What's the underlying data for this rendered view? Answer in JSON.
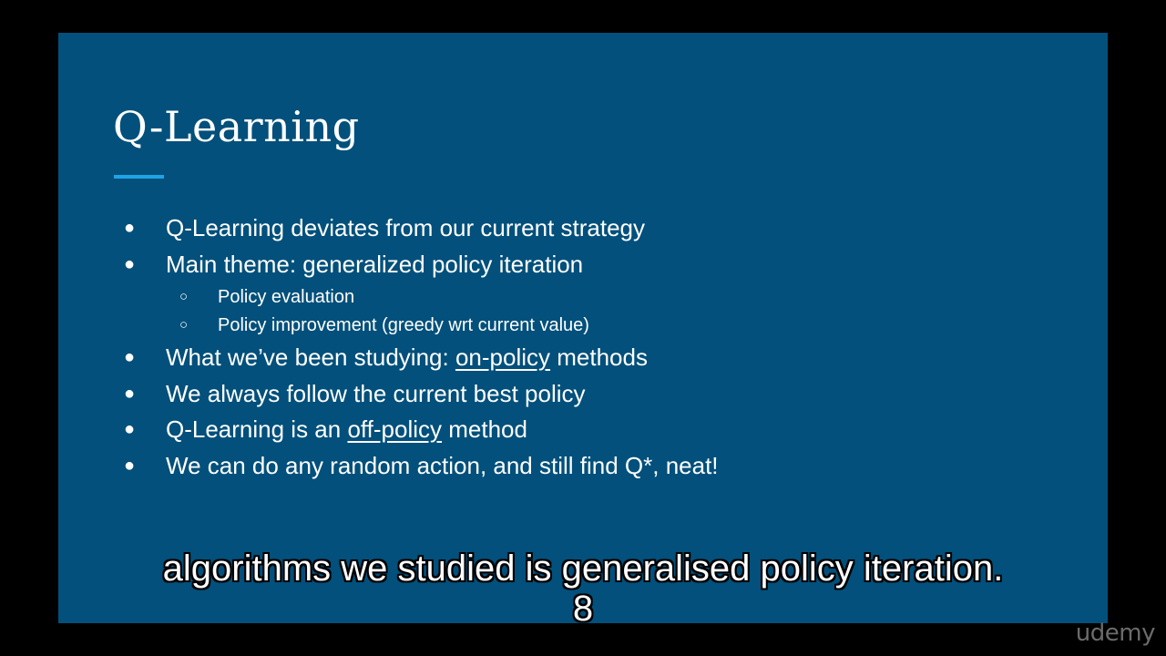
{
  "slide": {
    "title": "Q-Learning",
    "accent_color": "#1ea4e6",
    "background_color": "#02507b",
    "bullets": [
      {
        "marker": "●",
        "parts": [
          {
            "text": "Q-Learning deviates from our current strategy",
            "underline": false
          }
        ]
      },
      {
        "marker": "●",
        "parts": [
          {
            "text": "Main theme: generalized policy iteration",
            "underline": false
          }
        ]
      },
      {
        "marker": "○",
        "sub": true,
        "parts": [
          {
            "text": "Policy evaluation",
            "underline": false
          }
        ]
      },
      {
        "marker": "○",
        "sub": true,
        "parts": [
          {
            "text": "Policy improvement (greedy wrt current value)",
            "underline": false
          }
        ]
      },
      {
        "marker": "●",
        "parts": [
          {
            "text": "What we’ve been studying: ",
            "underline": false
          },
          {
            "text": "on-policy",
            "underline": true
          },
          {
            "text": " methods",
            "underline": false
          }
        ]
      },
      {
        "marker": "●",
        "parts": [
          {
            "text": "We always follow the current best policy",
            "underline": false
          }
        ]
      },
      {
        "marker": "●",
        "parts": [
          {
            "text": "Q-Learning is an ",
            "underline": false
          },
          {
            "text": "off-policy",
            "underline": true
          },
          {
            "text": " method",
            "underline": false
          }
        ]
      },
      {
        "marker": "●",
        "parts": [
          {
            "text": "We can do any random action, and still find Q*, neat!",
            "underline": false
          }
        ]
      }
    ]
  },
  "caption": {
    "line1": "algorithms we studied is generalised policy iteration.",
    "line2": "8"
  },
  "watermark": "udemy"
}
